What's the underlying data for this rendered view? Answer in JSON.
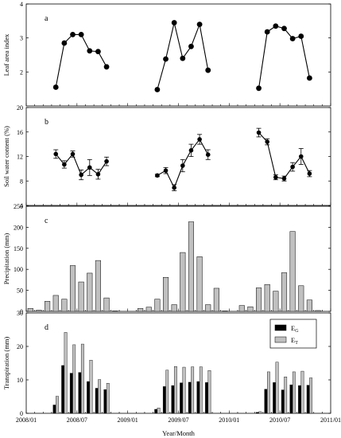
{
  "figure": {
    "xlabel": "Year/Month",
    "x_tick_labels": [
      "2008/01",
      "2008/07",
      "2009/01",
      "2009/07",
      "2010/01",
      "2010/07",
      "2011/01"
    ]
  },
  "chart_data": [
    {
      "type": "line",
      "panel": "a",
      "ylabel": "Leaf area index",
      "ylim": [
        1,
        4
      ],
      "yticks": [
        2,
        3,
        4
      ],
      "grid": false,
      "series": [
        {
          "x": [
            "2008/04",
            "2008/05",
            "2008/06",
            "2008/07",
            "2008/08",
            "2008/09",
            "2008/10"
          ],
          "values": [
            1.55,
            2.85,
            3.1,
            3.1,
            2.62,
            2.6,
            2.15
          ]
        },
        {
          "x": [
            "2009/04",
            "2009/05",
            "2009/06",
            "2009/07",
            "2009/08",
            "2009/09",
            "2009/10"
          ],
          "values": [
            1.48,
            2.38,
            3.45,
            2.4,
            2.75,
            3.4,
            2.05
          ]
        },
        {
          "x": [
            "2010/04",
            "2010/05",
            "2010/06",
            "2010/07",
            "2010/08",
            "2010/09",
            "2010/10"
          ],
          "values": [
            1.52,
            3.18,
            3.35,
            3.28,
            2.98,
            3.05,
            1.82
          ]
        }
      ]
    },
    {
      "type": "line",
      "panel": "b",
      "ylabel": "Soil water content (%)",
      "ylim": [
        4,
        20
      ],
      "yticks": [
        4,
        8,
        12,
        16,
        20
      ],
      "grid": false,
      "series": [
        {
          "x": [
            "2008/04",
            "2008/05",
            "2008/06",
            "2008/07",
            "2008/08",
            "2008/09",
            "2008/10"
          ],
          "values": [
            12.4,
            10.7,
            12.4,
            9.0,
            10.2,
            9.1,
            11.2
          ],
          "errors": [
            0.7,
            0.6,
            0.5,
            0.8,
            1.3,
            0.8,
            0.7
          ]
        },
        {
          "x": [
            "2009/04",
            "2009/05",
            "2009/06",
            "2009/07",
            "2009/08",
            "2009/09",
            "2009/10"
          ],
          "values": [
            8.9,
            9.7,
            6.9,
            10.5,
            13.0,
            14.8,
            12.3
          ],
          "errors": [
            0.2,
            0.5,
            0.5,
            1.0,
            1.0,
            0.8,
            0.8
          ]
        },
        {
          "x": [
            "2010/04",
            "2010/05",
            "2010/06",
            "2010/07",
            "2010/08",
            "2010/09",
            "2010/10"
          ],
          "values": [
            15.9,
            14.4,
            8.6,
            8.4,
            10.3,
            12.0,
            9.2
          ],
          "errors": [
            0.7,
            0.5,
            0.4,
            0.4,
            0.7,
            1.3,
            0.5
          ]
        }
      ]
    },
    {
      "type": "bar",
      "panel": "c",
      "ylabel": "Precipitation (mm)",
      "ylim": [
        0,
        250
      ],
      "yticks": [
        0,
        50,
        100,
        150,
        200,
        250
      ],
      "grid": false,
      "categories": [
        "2008/01",
        "2008/02",
        "2008/03",
        "2008/04",
        "2008/05",
        "2008/06",
        "2008/07",
        "2008/08",
        "2008/09",
        "2008/10",
        "2008/11",
        "2008/12",
        "2009/01",
        "2009/02",
        "2009/03",
        "2009/04",
        "2009/05",
        "2009/06",
        "2009/07",
        "2009/08",
        "2009/09",
        "2009/10",
        "2009/11",
        "2009/12",
        "2010/01",
        "2010/02",
        "2010/03",
        "2010/04",
        "2010/05",
        "2010/06",
        "2010/07",
        "2010/08",
        "2010/09",
        "2010/10",
        "2010/11",
        "2010/12"
      ],
      "values": [
        7,
        3,
        24,
        38,
        29,
        109,
        70,
        91,
        121,
        32,
        1,
        0,
        0,
        7,
        10,
        29,
        81,
        16,
        140,
        213,
        130,
        16,
        55,
        1,
        0,
        14,
        11,
        56,
        64,
        48,
        92,
        190,
        61,
        27,
        2,
        0
      ]
    },
    {
      "type": "bar",
      "panel": "d",
      "ylabel": "Transpiration (mm)",
      "ylim": [
        0,
        30
      ],
      "yticks": [
        0,
        10,
        20,
        30
      ],
      "grid": false,
      "legend": {
        "position": "top-right"
      },
      "categories": [
        "2008/04",
        "2008/05",
        "2008/06",
        "2008/07",
        "2008/08",
        "2008/09",
        "2008/10",
        "2009/04",
        "2009/05",
        "2009/06",
        "2009/07",
        "2009/08",
        "2009/09",
        "2009/10",
        "2010/04",
        "2010/05",
        "2010/06",
        "2010/07",
        "2010/08",
        "2010/09",
        "2010/10"
      ],
      "series": [
        {
          "name": "E",
          "sub": "G",
          "color": "#000000",
          "values": [
            2.5,
            14.3,
            12.0,
            12.2,
            9.5,
            7.5,
            7.1,
            1.2,
            8.0,
            8.3,
            9.1,
            9.3,
            9.5,
            9.2,
            0.3,
            7.2,
            9.2,
            7.0,
            8.5,
            8.3,
            8.4
          ]
        },
        {
          "name": "E",
          "sub": "T",
          "color": "#c0c0c0",
          "values": [
            5.1,
            24.2,
            20.5,
            20.7,
            15.9,
            10.1,
            9.0,
            1.6,
            12.9,
            14.0,
            13.8,
            13.9,
            13.9,
            12.8,
            0.5,
            12.4,
            15.3,
            10.9,
            12.4,
            12.6,
            10.6
          ]
        }
      ]
    }
  ]
}
